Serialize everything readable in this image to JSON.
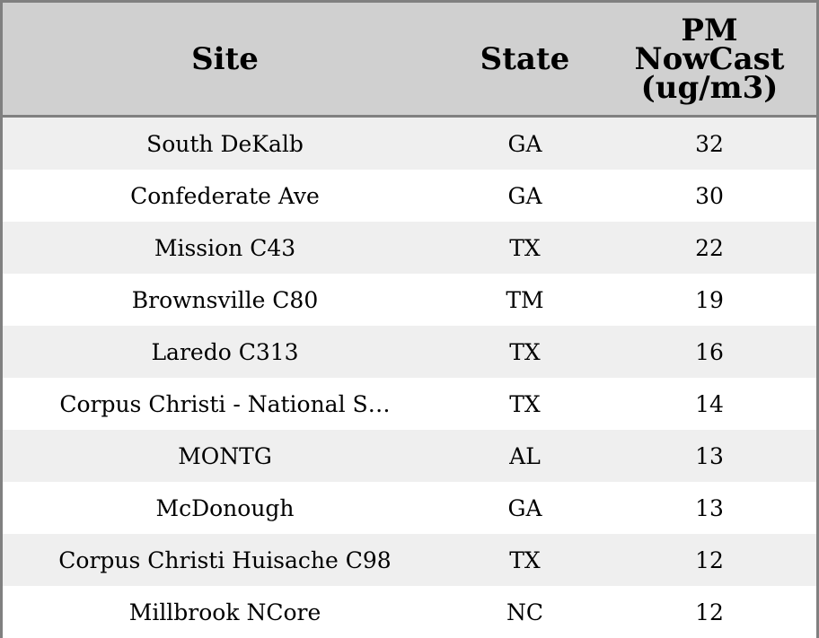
{
  "table": {
    "headers": {
      "site": "Site",
      "state": "State",
      "pm_line1": "PM",
      "pm_line2": "NowCast",
      "pm_line3": "(ug/m3)"
    },
    "rows": [
      {
        "site": "South DeKalb",
        "state": "GA",
        "pm": "32"
      },
      {
        "site": "Confederate Ave",
        "state": "GA",
        "pm": "30"
      },
      {
        "site": "Mission C43",
        "state": "TX",
        "pm": "22"
      },
      {
        "site": "Brownsville C80",
        "state": "TM",
        "pm": "19"
      },
      {
        "site": "Laredo C313",
        "state": "TX",
        "pm": "16"
      },
      {
        "site": "Corpus Christi - National S…",
        "state": "TX",
        "pm": "14"
      },
      {
        "site": "MONTG",
        "state": "AL",
        "pm": "13"
      },
      {
        "site": "McDonough",
        "state": "GA",
        "pm": "13"
      },
      {
        "site": "Corpus Christi Huisache C98",
        "state": "TX",
        "pm": "12"
      },
      {
        "site": "Millbrook NCore",
        "state": "NC",
        "pm": "12"
      }
    ]
  },
  "colors": {
    "header_bg": "#d0d0d0",
    "stripe_bg": "#efefef",
    "border": "#808080"
  }
}
